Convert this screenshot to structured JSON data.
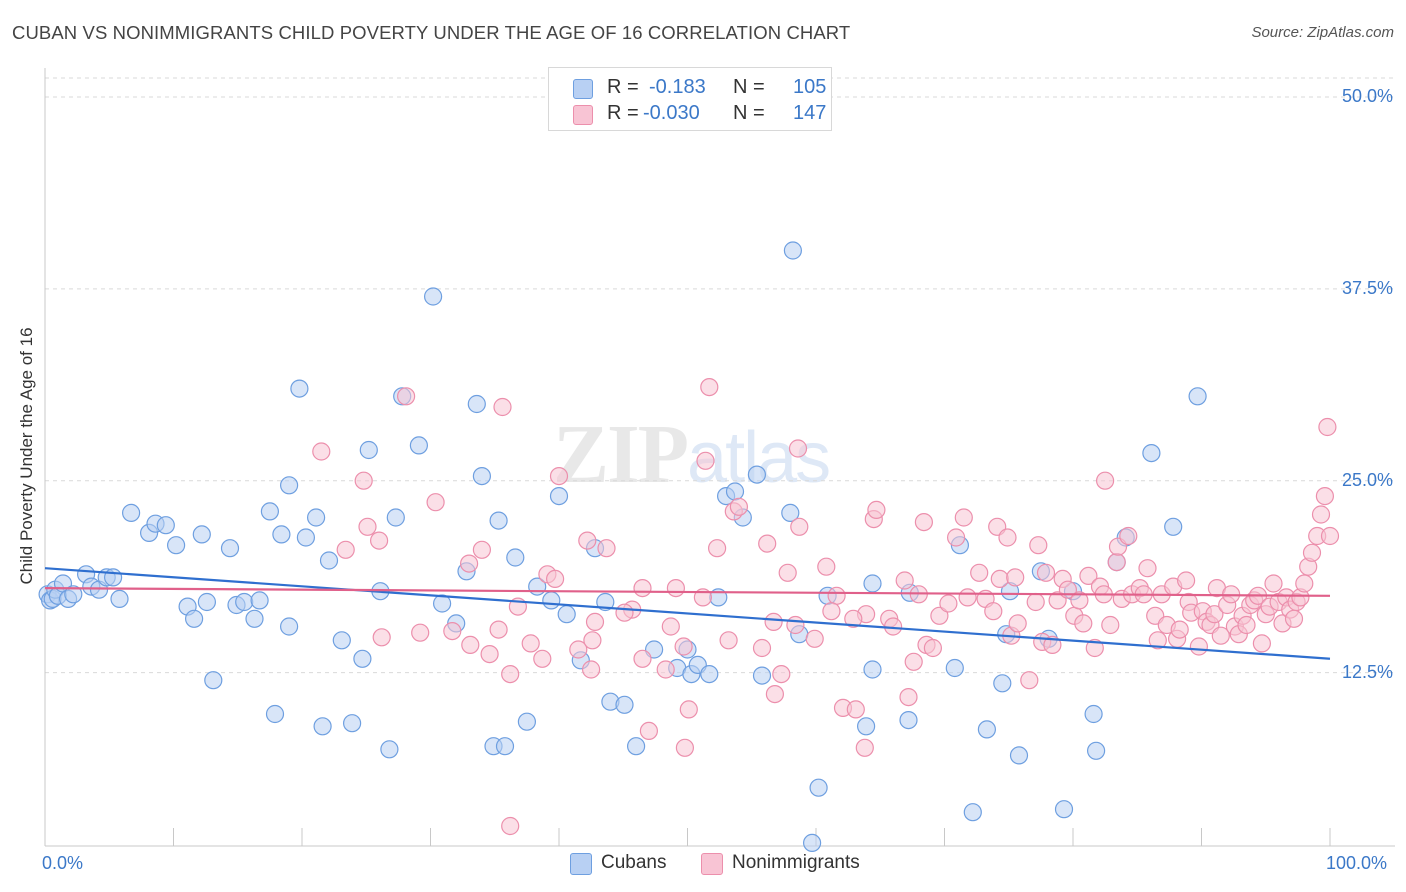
{
  "title": "CUBAN VS NONIMMIGRANTS CHILD POVERTY UNDER THE AGE OF 16 CORRELATION CHART",
  "source": "Source: ZipAtlas.com",
  "watermark": {
    "zip": "ZIP",
    "atlas": "atlas"
  },
  "legend": {
    "rows": [
      {
        "r_label": "R =",
        "r_value": "-0.183",
        "n_label": "N =",
        "n_value": "105"
      },
      {
        "r_label": "R =",
        "r_value": "-0.030",
        "n_label": "N =",
        "n_value": "147"
      }
    ]
  },
  "bottom_legend": {
    "cubans": "Cubans",
    "nonimmigrants": "Nonimmigrants"
  },
  "colors": {
    "cubans_fill": "#b8d0f3",
    "cubans_stroke": "#6e9fe0",
    "cubans_line": "#2f6fcf",
    "non_fill": "#f8c4d4",
    "non_stroke": "#ec8fac",
    "non_line": "#e0608a",
    "axis_text": "#3b78c8",
    "grid": "#d9d9d9"
  },
  "chart_data": {
    "type": "scatter",
    "title": "CUBAN VS NONIMMIGRANTS CHILD POVERTY UNDER THE AGE OF 16 CORRELATION CHART",
    "xlabel": "",
    "ylabel": "Child Poverty Under the Age of 16",
    "xlim": [
      0,
      100
    ],
    "ylim": [
      0,
      52
    ],
    "x_tick_labels": [
      "0.0%",
      "100.0%"
    ],
    "y_ticks": [
      12.5,
      25.0,
      37.5,
      50.0
    ],
    "y_tick_labels": [
      "12.5%",
      "25.0%",
      "37.5%",
      "50.0%"
    ],
    "grid": "horizontal dashed",
    "legend_position": "top-center",
    "series": [
      {
        "name": "Cubans",
        "trend": {
          "x": [
            0,
            100
          ],
          "y": [
            19.3,
            13.4
          ]
        },
        "points": [
          [
            0.2,
            17.6
          ],
          [
            0.4,
            17.2
          ],
          [
            0.6,
            17.3
          ],
          [
            0.8,
            17.9
          ],
          [
            1.0,
            17.5
          ],
          [
            1.4,
            18.3
          ],
          [
            1.8,
            17.3
          ],
          [
            2.2,
            17.6
          ],
          [
            3.2,
            18.9
          ],
          [
            3.6,
            18.1
          ],
          [
            4.2,
            17.9
          ],
          [
            4.8,
            18.7
          ],
          [
            5.3,
            18.7
          ],
          [
            5.8,
            17.3
          ],
          [
            6.7,
            22.9
          ],
          [
            8.1,
            21.6
          ],
          [
            8.6,
            22.2
          ],
          [
            9.4,
            22.1
          ],
          [
            10.2,
            20.8
          ],
          [
            11.1,
            16.8
          ],
          [
            11.6,
            16.0
          ],
          [
            12.2,
            21.5
          ],
          [
            12.6,
            17.1
          ],
          [
            13.1,
            12.0
          ],
          [
            14.4,
            20.6
          ],
          [
            14.9,
            16.9
          ],
          [
            15.5,
            17.1
          ],
          [
            16.3,
            16.0
          ],
          [
            16.7,
            17.2
          ],
          [
            17.5,
            23.0
          ],
          [
            17.9,
            9.8
          ],
          [
            18.4,
            21.5
          ],
          [
            19.0,
            15.5
          ],
          [
            19.0,
            24.7
          ],
          [
            19.8,
            31.0
          ],
          [
            20.3,
            21.3
          ],
          [
            21.1,
            22.6
          ],
          [
            21.6,
            9.0
          ],
          [
            22.1,
            19.8
          ],
          [
            23.1,
            14.6
          ],
          [
            23.9,
            9.2
          ],
          [
            24.7,
            13.4
          ],
          [
            25.2,
            27.0
          ],
          [
            26.1,
            17.8
          ],
          [
            26.8,
            7.5
          ],
          [
            27.3,
            22.6
          ],
          [
            27.8,
            30.5
          ],
          [
            29.1,
            27.3
          ],
          [
            30.2,
            37.0
          ],
          [
            30.9,
            17.0
          ],
          [
            32.0,
            15.7
          ],
          [
            32.8,
            19.1
          ],
          [
            33.6,
            30.0
          ],
          [
            34.0,
            25.3
          ],
          [
            34.9,
            7.7
          ],
          [
            35.3,
            22.4
          ],
          [
            35.8,
            7.7
          ],
          [
            36.6,
            20.0
          ],
          [
            37.5,
            9.3
          ],
          [
            38.3,
            18.1
          ],
          [
            39.4,
            17.2
          ],
          [
            40.0,
            24.0
          ],
          [
            40.6,
            16.3
          ],
          [
            41.7,
            13.3
          ],
          [
            42.8,
            20.6
          ],
          [
            43.6,
            17.1
          ],
          [
            44.0,
            10.6
          ],
          [
            45.1,
            10.4
          ],
          [
            46.0,
            7.7
          ],
          [
            47.4,
            14.0
          ],
          [
            49.2,
            12.8
          ],
          [
            50.0,
            14.0
          ],
          [
            50.3,
            12.4
          ],
          [
            50.8,
            13.0
          ],
          [
            51.7,
            12.4
          ],
          [
            52.4,
            17.4
          ],
          [
            53.0,
            24.0
          ],
          [
            53.7,
            24.3
          ],
          [
            54.3,
            22.6
          ],
          [
            55.4,
            25.4
          ],
          [
            55.8,
            12.3
          ],
          [
            58.0,
            22.9
          ],
          [
            58.2,
            40.0
          ],
          [
            58.7,
            15.0
          ],
          [
            59.7,
            1.4
          ],
          [
            60.2,
            5.0
          ],
          [
            60.9,
            17.5
          ],
          [
            63.9,
            9.0
          ],
          [
            64.4,
            18.3
          ],
          [
            64.4,
            12.7
          ],
          [
            67.2,
            9.4
          ],
          [
            67.3,
            17.7
          ],
          [
            70.8,
            12.8
          ],
          [
            71.2,
            20.8
          ],
          [
            72.2,
            3.4
          ],
          [
            73.3,
            8.8
          ],
          [
            74.5,
            11.8
          ],
          [
            74.8,
            15.0
          ],
          [
            75.1,
            17.8
          ],
          [
            75.8,
            7.1
          ],
          [
            77.5,
            19.1
          ],
          [
            78.1,
            14.7
          ],
          [
            79.3,
            3.6
          ],
          [
            80.0,
            17.8
          ],
          [
            81.6,
            9.8
          ],
          [
            81.8,
            7.4
          ],
          [
            83.4,
            19.7
          ],
          [
            84.1,
            21.3
          ],
          [
            86.1,
            26.8
          ],
          [
            87.8,
            22.0
          ],
          [
            89.7,
            30.5
          ]
        ]
      },
      {
        "name": "Nonimmigrants",
        "trend": {
          "x": [
            0,
            100
          ],
          "y": [
            18.0,
            17.5
          ]
        },
        "points": [
          [
            21.5,
            26.9
          ],
          [
            23.4,
            20.5
          ],
          [
            25.1,
            22.0
          ],
          [
            26.0,
            21.1
          ],
          [
            28.1,
            30.5
          ],
          [
            29.2,
            15.1
          ],
          [
            30.4,
            23.6
          ],
          [
            31.7,
            15.2
          ],
          [
            33.0,
            19.6
          ],
          [
            34.0,
            20.5
          ],
          [
            34.6,
            13.7
          ],
          [
            35.3,
            15.3
          ],
          [
            36.2,
            12.4
          ],
          [
            37.8,
            14.4
          ],
          [
            39.1,
            18.9
          ],
          [
            39.7,
            18.6
          ],
          [
            41.5,
            14.0
          ],
          [
            42.2,
            21.1
          ],
          [
            42.5,
            12.7
          ],
          [
            42.8,
            15.8
          ],
          [
            43.7,
            20.6
          ],
          [
            45.7,
            16.6
          ],
          [
            46.5,
            18.0
          ],
          [
            47.0,
            8.7
          ],
          [
            48.3,
            12.7
          ],
          [
            48.7,
            15.5
          ],
          [
            49.8,
            7.6
          ],
          [
            50.1,
            10.1
          ],
          [
            51.2,
            17.4
          ],
          [
            51.4,
            26.3
          ],
          [
            51.7,
            31.1
          ],
          [
            52.3,
            20.6
          ],
          [
            53.6,
            23.0
          ],
          [
            55.8,
            14.1
          ],
          [
            56.2,
            20.9
          ],
          [
            56.7,
            15.8
          ],
          [
            57.3,
            12.4
          ],
          [
            57.8,
            19.0
          ],
          [
            58.4,
            15.6
          ],
          [
            58.6,
            27.1
          ],
          [
            58.7,
            22.0
          ],
          [
            60.8,
            19.4
          ],
          [
            61.6,
            17.5
          ],
          [
            62.1,
            10.2
          ],
          [
            63.8,
            7.6
          ],
          [
            63.9,
            16.3
          ],
          [
            64.5,
            22.5
          ],
          [
            64.7,
            23.1
          ],
          [
            65.7,
            16.0
          ],
          [
            66.0,
            15.5
          ],
          [
            66.9,
            18.5
          ],
          [
            67.6,
            13.2
          ],
          [
            68.0,
            17.6
          ],
          [
            68.6,
            14.3
          ],
          [
            69.6,
            16.2
          ],
          [
            70.3,
            17.0
          ],
          [
            71.5,
            22.6
          ],
          [
            71.8,
            17.4
          ],
          [
            72.7,
            19.0
          ],
          [
            73.2,
            17.3
          ],
          [
            74.1,
            22.0
          ],
          [
            74.3,
            18.6
          ],
          [
            74.9,
            21.3
          ],
          [
            75.2,
            14.9
          ],
          [
            75.5,
            18.7
          ],
          [
            75.7,
            15.7
          ],
          [
            76.6,
            12.0
          ],
          [
            77.1,
            17.1
          ],
          [
            77.3,
            20.8
          ],
          [
            77.6,
            14.5
          ],
          [
            77.9,
            19.0
          ],
          [
            78.4,
            14.3
          ],
          [
            78.8,
            17.2
          ],
          [
            79.2,
            18.6
          ],
          [
            79.6,
            17.9
          ],
          [
            80.1,
            16.2
          ],
          [
            80.5,
            17.2
          ],
          [
            80.8,
            15.7
          ],
          [
            81.2,
            18.8
          ],
          [
            81.7,
            14.1
          ],
          [
            82.1,
            18.1
          ],
          [
            82.4,
            17.6
          ],
          [
            82.5,
            25.0
          ],
          [
            82.9,
            15.6
          ],
          [
            83.4,
            19.7
          ],
          [
            83.5,
            20.7
          ],
          [
            83.8,
            17.3
          ],
          [
            84.3,
            21.4
          ],
          [
            84.6,
            17.6
          ],
          [
            85.2,
            18.0
          ],
          [
            85.5,
            17.6
          ],
          [
            85.8,
            19.3
          ],
          [
            86.4,
            16.2
          ],
          [
            86.6,
            14.6
          ],
          [
            86.9,
            17.6
          ],
          [
            87.3,
            15.6
          ],
          [
            87.8,
            18.1
          ],
          [
            88.1,
            14.7
          ],
          [
            88.3,
            15.3
          ],
          [
            88.8,
            18.5
          ],
          [
            89.0,
            17.1
          ],
          [
            89.2,
            16.4
          ],
          [
            89.8,
            14.2
          ],
          [
            90.1,
            16.5
          ],
          [
            90.4,
            15.8
          ],
          [
            90.7,
            15.6
          ],
          [
            91.0,
            16.3
          ],
          [
            91.2,
            18.0
          ],
          [
            91.5,
            14.9
          ],
          [
            92.0,
            16.9
          ],
          [
            92.3,
            17.6
          ],
          [
            92.6,
            15.5
          ],
          [
            92.9,
            15.0
          ],
          [
            93.2,
            16.2
          ],
          [
            93.5,
            15.6
          ],
          [
            93.8,
            16.9
          ],
          [
            94.1,
            17.2
          ],
          [
            94.4,
            17.5
          ],
          [
            94.7,
            14.4
          ],
          [
            95.0,
            16.3
          ],
          [
            95.3,
            16.8
          ],
          [
            95.6,
            18.3
          ],
          [
            96.0,
            17.1
          ],
          [
            96.3,
            15.7
          ],
          [
            96.6,
            17.4
          ],
          [
            96.9,
            16.6
          ],
          [
            97.2,
            16.0
          ],
          [
            97.4,
            17.1
          ],
          [
            97.7,
            17.4
          ],
          [
            98.0,
            18.3
          ],
          [
            98.3,
            19.4
          ],
          [
            98.6,
            20.3
          ],
          [
            99.0,
            21.4
          ],
          [
            99.3,
            22.8
          ],
          [
            99.6,
            24.0
          ],
          [
            99.8,
            28.5
          ],
          [
            100.0,
            21.4
          ],
          [
            35.6,
            29.8
          ],
          [
            40.0,
            25.3
          ],
          [
            38.7,
            13.4
          ],
          [
            36.8,
            16.8
          ],
          [
            45.1,
            16.4
          ],
          [
            49.7,
            14.2
          ],
          [
            53.2,
            14.6
          ],
          [
            56.8,
            11.1
          ],
          [
            61.2,
            16.5
          ],
          [
            62.9,
            16.0
          ],
          [
            68.4,
            22.3
          ],
          [
            70.9,
            21.3
          ],
          [
            73.8,
            16.5
          ],
          [
            26.2,
            14.8
          ],
          [
            33.1,
            14.3
          ],
          [
            46.5,
            13.4
          ],
          [
            49.1,
            18.0
          ],
          [
            54.0,
            23.3
          ],
          [
            59.9,
            14.7
          ],
          [
            63.1,
            10.1
          ],
          [
            67.2,
            10.9
          ],
          [
            69.1,
            14.1
          ],
          [
            24.8,
            25.0
          ],
          [
            36.2,
            2.5
          ],
          [
            42.6,
            14.6
          ]
        ]
      }
    ]
  }
}
